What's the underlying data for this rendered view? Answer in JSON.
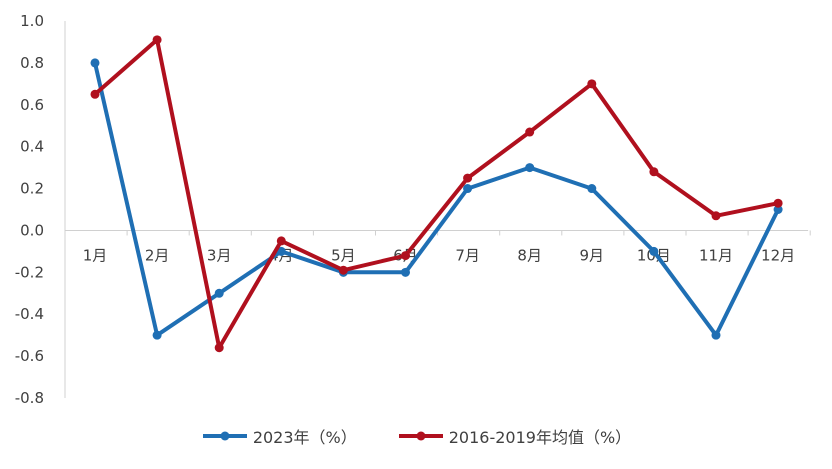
{
  "chart_data": {
    "type": "line",
    "categories": [
      "1月",
      "2月",
      "3月",
      "4月",
      "5月",
      "6月",
      "7月",
      "8月",
      "9月",
      "10月",
      "11月",
      "12月"
    ],
    "series": [
      {
        "name": "2023年（%）",
        "color": "#1f6fb4",
        "values": [
          0.8,
          -0.5,
          -0.3,
          -0.1,
          -0.2,
          -0.2,
          0.2,
          0.3,
          0.2,
          -0.1,
          -0.5,
          0.1
        ]
      },
      {
        "name": "2016-2019年均值（%）",
        "color": "#b0101e",
        "values": [
          0.65,
          0.91,
          -0.56,
          -0.05,
          -0.19,
          -0.12,
          0.25,
          0.47,
          0.7,
          0.28,
          0.07,
          0.13
        ]
      }
    ],
    "ylim": [
      -0.8,
      1.0
    ],
    "yticks": [
      "1.0",
      "0.8",
      "0.6",
      "0.4",
      "0.2",
      "0.0",
      "-0.2",
      "-0.4",
      "-0.6",
      "-0.8"
    ],
    "grid": false,
    "legend_position": "bottom",
    "title": "",
    "xlabel": "",
    "ylabel": ""
  }
}
